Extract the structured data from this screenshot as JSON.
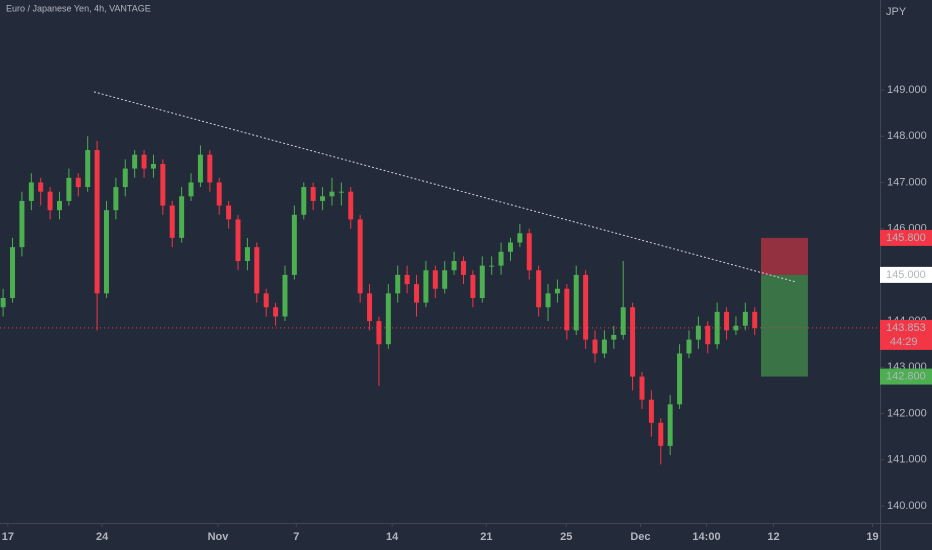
{
  "chart_data": {
    "type": "candlestick",
    "title": "Euro / Japanese Yen, 4h, VANTAGE",
    "currency": "JPY",
    "up_color": "#4caf50",
    "down_color": "#f23645",
    "x": [
      1,
      4,
      7,
      10,
      13,
      16,
      19,
      22,
      25,
      28,
      31,
      34,
      37,
      40,
      43,
      46,
      49,
      52,
      55,
      58,
      61,
      64,
      67,
      70,
      73,
      76,
      79,
      82,
      85,
      88,
      91,
      94,
      97,
      100,
      103,
      106,
      109,
      112,
      115,
      118,
      121,
      124,
      127,
      130,
      133,
      136,
      139,
      142,
      145,
      148,
      151,
      154,
      157,
      160,
      163,
      166,
      169,
      172,
      175,
      178,
      181,
      184,
      187,
      190,
      193,
      196,
      199,
      202,
      205,
      208,
      211,
      214,
      217,
      220,
      223,
      226,
      229,
      232,
      235,
      238,
      241
    ],
    "candles": [
      [
        144.3,
        144.7,
        144.1,
        144.5
      ],
      [
        144.5,
        145.8,
        144.4,
        145.6
      ],
      [
        145.6,
        146.8,
        145.4,
        146.6
      ],
      [
        146.6,
        147.2,
        146.4,
        147.0
      ],
      [
        147.0,
        147.1,
        146.5,
        146.8
      ],
      [
        146.8,
        146.9,
        146.2,
        146.4
      ],
      [
        146.4,
        146.8,
        146.2,
        146.6
      ],
      [
        146.6,
        147.3,
        146.5,
        147.1
      ],
      [
        147.1,
        147.2,
        146.7,
        146.9
      ],
      [
        146.9,
        148.0,
        146.8,
        147.7
      ],
      [
        147.7,
        147.9,
        143.8,
        144.6
      ],
      [
        144.6,
        146.6,
        144.5,
        146.4
      ],
      [
        146.4,
        147.1,
        146.2,
        146.9
      ],
      [
        146.9,
        147.5,
        146.7,
        147.3
      ],
      [
        147.3,
        147.7,
        147.1,
        147.6
      ],
      [
        147.6,
        147.7,
        147.1,
        147.3
      ],
      [
        147.3,
        147.6,
        147.1,
        147.4
      ],
      [
        147.4,
        147.5,
        146.3,
        146.5
      ],
      [
        146.5,
        146.6,
        145.6,
        145.8
      ],
      [
        145.8,
        146.9,
        145.7,
        146.7
      ],
      [
        146.7,
        147.2,
        146.6,
        147.0
      ],
      [
        147.0,
        147.8,
        146.9,
        147.6
      ],
      [
        147.6,
        147.7,
        146.8,
        147.0
      ],
      [
        147.0,
        147.1,
        146.3,
        146.5
      ],
      [
        146.5,
        146.6,
        146.0,
        146.2
      ],
      [
        146.2,
        146.3,
        145.1,
        145.3
      ],
      [
        145.3,
        145.8,
        145.1,
        145.6
      ],
      [
        145.6,
        145.7,
        144.4,
        144.6
      ],
      [
        144.6,
        144.7,
        144.1,
        144.3
      ],
      [
        144.3,
        144.4,
        143.9,
        144.1
      ],
      [
        144.1,
        145.2,
        144.0,
        145.0
      ],
      [
        145.0,
        146.5,
        144.9,
        146.3
      ],
      [
        146.3,
        147.0,
        146.2,
        146.9
      ],
      [
        146.9,
        147.0,
        146.4,
        146.6
      ],
      [
        146.6,
        146.9,
        146.4,
        146.7
      ],
      [
        146.7,
        147.1,
        146.5,
        146.8
      ],
      [
        146.8,
        147.0,
        146.5,
        146.8
      ],
      [
        146.8,
        146.9,
        146.0,
        146.2
      ],
      [
        146.2,
        146.3,
        144.4,
        144.6
      ],
      [
        144.6,
        144.8,
        143.8,
        144.0
      ],
      [
        144.0,
        144.1,
        142.6,
        143.5
      ],
      [
        143.5,
        144.8,
        143.4,
        144.6
      ],
      [
        144.6,
        145.2,
        144.4,
        145.0
      ],
      [
        145.0,
        145.2,
        144.6,
        144.8
      ],
      [
        144.8,
        145.0,
        144.1,
        144.4
      ],
      [
        144.4,
        145.3,
        144.3,
        145.1
      ],
      [
        145.1,
        145.2,
        144.5,
        144.7
      ],
      [
        144.7,
        145.3,
        144.6,
        145.1
      ],
      [
        145.1,
        145.5,
        145.0,
        145.3
      ],
      [
        145.3,
        145.4,
        144.8,
        145.0
      ],
      [
        145.0,
        145.1,
        144.3,
        144.5
      ],
      [
        144.5,
        145.4,
        144.4,
        145.2
      ],
      [
        145.2,
        145.4,
        145.0,
        145.2
      ],
      [
        145.2,
        145.7,
        145.0,
        145.5
      ],
      [
        145.5,
        145.8,
        145.3,
        145.7
      ],
      [
        145.7,
        146.1,
        145.6,
        145.9
      ],
      [
        145.9,
        146.0,
        144.9,
        145.1
      ],
      [
        145.1,
        145.2,
        144.1,
        144.3
      ],
      [
        144.3,
        144.8,
        144.0,
        144.6
      ],
      [
        144.6,
        144.9,
        144.4,
        144.7
      ],
      [
        144.7,
        144.8,
        143.6,
        143.8
      ],
      [
        143.8,
        145.2,
        143.7,
        145.0
      ],
      [
        145.0,
        145.1,
        143.4,
        143.6
      ],
      [
        143.6,
        143.8,
        143.1,
        143.3
      ],
      [
        143.3,
        143.8,
        143.2,
        143.6
      ],
      [
        143.6,
        143.9,
        143.4,
        143.7
      ],
      [
        143.7,
        145.3,
        143.6,
        144.3
      ],
      [
        144.3,
        144.4,
        142.5,
        142.8
      ],
      [
        142.8,
        142.9,
        142.1,
        142.3
      ],
      [
        142.3,
        142.5,
        141.5,
        141.8
      ],
      [
        141.8,
        141.9,
        140.9,
        141.3
      ],
      [
        141.3,
        142.4,
        141.1,
        142.2
      ],
      [
        142.2,
        143.5,
        142.1,
        143.3
      ],
      [
        143.3,
        143.8,
        143.2,
        143.6
      ],
      [
        143.6,
        144.1,
        143.4,
        143.9
      ],
      [
        143.9,
        144.0,
        143.3,
        143.5
      ],
      [
        143.5,
        144.4,
        143.4,
        144.2
      ],
      [
        144.2,
        144.3,
        143.6,
        143.8
      ],
      [
        143.8,
        144.1,
        143.7,
        143.9
      ],
      [
        143.9,
        144.4,
        143.8,
        144.2
      ],
      [
        144.2,
        144.3,
        143.7,
        143.853
      ]
    ],
    "xlim": [
      0,
      281
    ],
    "xticks": [
      {
        "value": 2.5,
        "label": "17"
      },
      {
        "value": 32.6,
        "label": "24"
      },
      {
        "value": 69.6,
        "label": "Nov"
      },
      {
        "value": 94.6,
        "label": "7"
      },
      {
        "value": 125.2,
        "label": "14"
      },
      {
        "value": 155.3,
        "label": "21"
      },
      {
        "value": 180.8,
        "label": "25"
      },
      {
        "value": 204.5,
        "label": "Dec"
      },
      {
        "value": 225.6,
        "label": "14:00"
      },
      {
        "value": 247,
        "label": "12"
      },
      {
        "value": 278.6,
        "label": "19"
      }
    ],
    "ylim": [
      139.632,
      150.947
    ],
    "yticks": [
      {
        "value": 140,
        "label": "140.000"
      },
      {
        "value": 141,
        "label": "141.000"
      },
      {
        "value": 142,
        "label": "142.000"
      },
      {
        "value": 143,
        "label": "143.000"
      },
      {
        "value": 144,
        "label": "144.000"
      },
      {
        "value": 145,
        "label": "145.000"
      },
      {
        "value": 146,
        "label": "146.000"
      },
      {
        "value": 147,
        "label": "147.000"
      },
      {
        "value": 148,
        "label": "148.000"
      },
      {
        "value": 149,
        "label": "149.000"
      }
    ],
    "trendline": {
      "x": [
        30,
        254
      ],
      "y": [
        148.96,
        144.85
      ]
    },
    "position": {
      "x": [
        243,
        258
      ],
      "stop": {
        "value": 145.8,
        "label": "145.800"
      },
      "entry": {
        "value": 145,
        "label": "145.000"
      },
      "target": {
        "value": 142.8,
        "label": "142.800"
      }
    },
    "last_price": 143.853,
    "countdown": "44:29"
  }
}
